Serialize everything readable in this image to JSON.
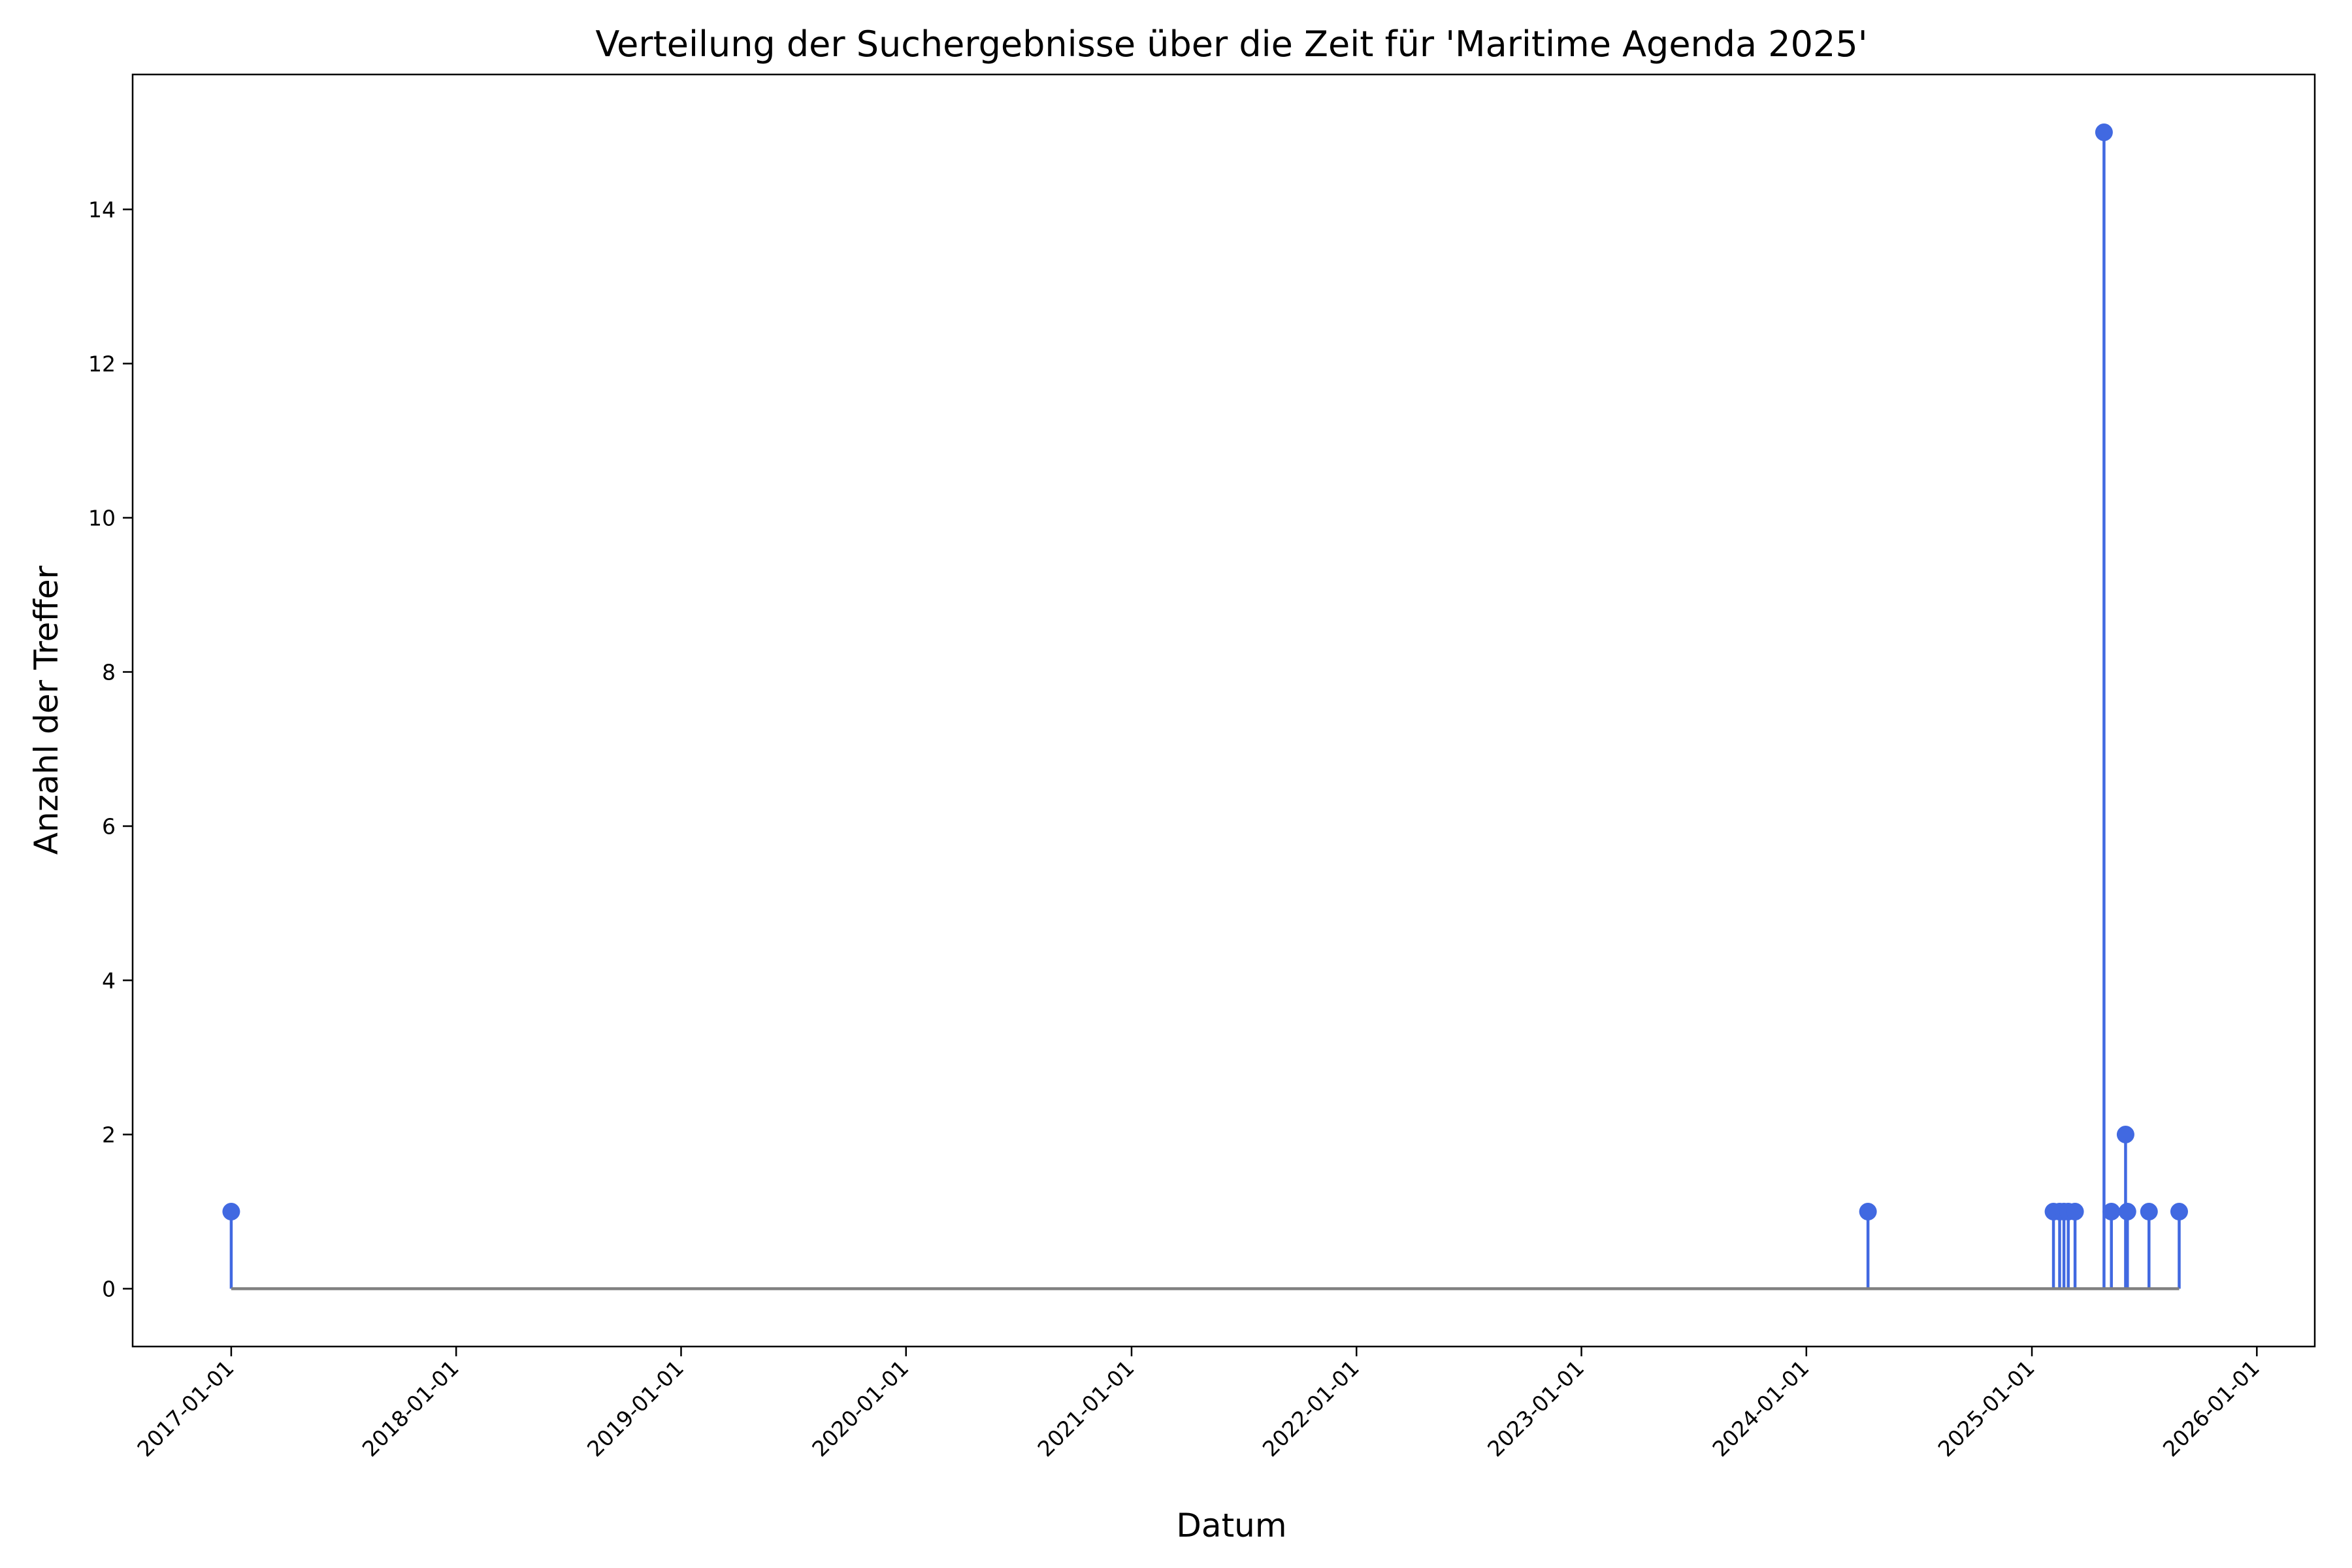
{
  "chart_data": {
    "type": "stem",
    "title": "Verteilung der Suchergebnisse über die Zeit für 'Maritime Agenda 2025'",
    "xlabel": "Datum",
    "ylabel": "Anzahl der Treffer",
    "x_type": "date",
    "xlim": [
      "2016-07-25",
      "2026-04-05"
    ],
    "ylim": [
      -0.75,
      15.75
    ],
    "x_ticks": [
      "2017-01-01",
      "2018-01-01",
      "2019-01-01",
      "2020-01-01",
      "2021-01-01",
      "2022-01-01",
      "2023-01-01",
      "2024-01-01",
      "2025-01-01",
      "2026-01-01"
    ],
    "y_ticks": [
      0,
      2,
      4,
      6,
      8,
      10,
      12,
      14
    ],
    "grid": false,
    "legend": false,
    "colors": {
      "stem": "#4169e1",
      "baseline": "#808080"
    },
    "points": [
      {
        "x": "2017-01-01",
        "y": 1
      },
      {
        "x": "2024-04-10",
        "y": 1
      },
      {
        "x": "2025-02-05",
        "y": 1
      },
      {
        "x": "2025-02-15",
        "y": 1
      },
      {
        "x": "2025-02-22",
        "y": 1
      },
      {
        "x": "2025-03-01",
        "y": 1
      },
      {
        "x": "2025-03-12",
        "y": 1
      },
      {
        "x": "2025-04-28",
        "y": 15
      },
      {
        "x": "2025-05-10",
        "y": 1
      },
      {
        "x": "2025-06-02",
        "y": 2
      },
      {
        "x": "2025-06-05",
        "y": 1
      },
      {
        "x": "2025-07-10",
        "y": 1
      },
      {
        "x": "2025-08-28",
        "y": 1
      }
    ]
  }
}
